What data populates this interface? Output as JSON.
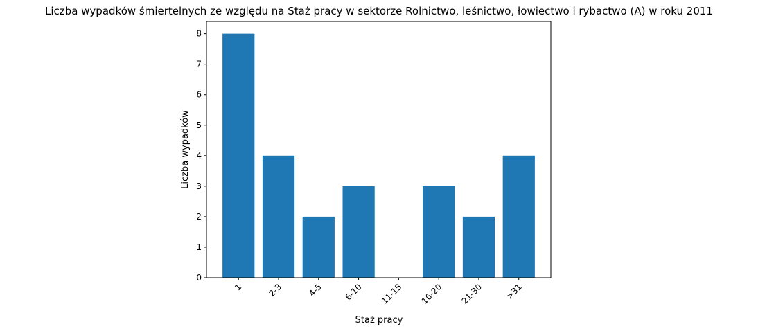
{
  "chart_data": {
    "type": "bar",
    "title": "Liczba wypadków śmiertelnych ze względu na Staż pracy w sektorze Rolnictwo, leśnictwo, łowiectwo i rybactwo (A) w roku 2011",
    "xlabel": "Staż pracy",
    "ylabel": "Liczba wypadków",
    "categories": [
      "1",
      "2-3",
      "4-5",
      "6-10",
      "11-15",
      "16-20",
      "21-30",
      ">31"
    ],
    "values": [
      8,
      4,
      2,
      3,
      0,
      3,
      2,
      4
    ],
    "ylim": [
      0,
      8.4
    ],
    "yticks": [
      0,
      1,
      2,
      3,
      4,
      5,
      6,
      7,
      8
    ],
    "bar_color": "#1f77b4",
    "grid": false,
    "legend": "none",
    "x_tick_rotation": "45 degrees"
  }
}
